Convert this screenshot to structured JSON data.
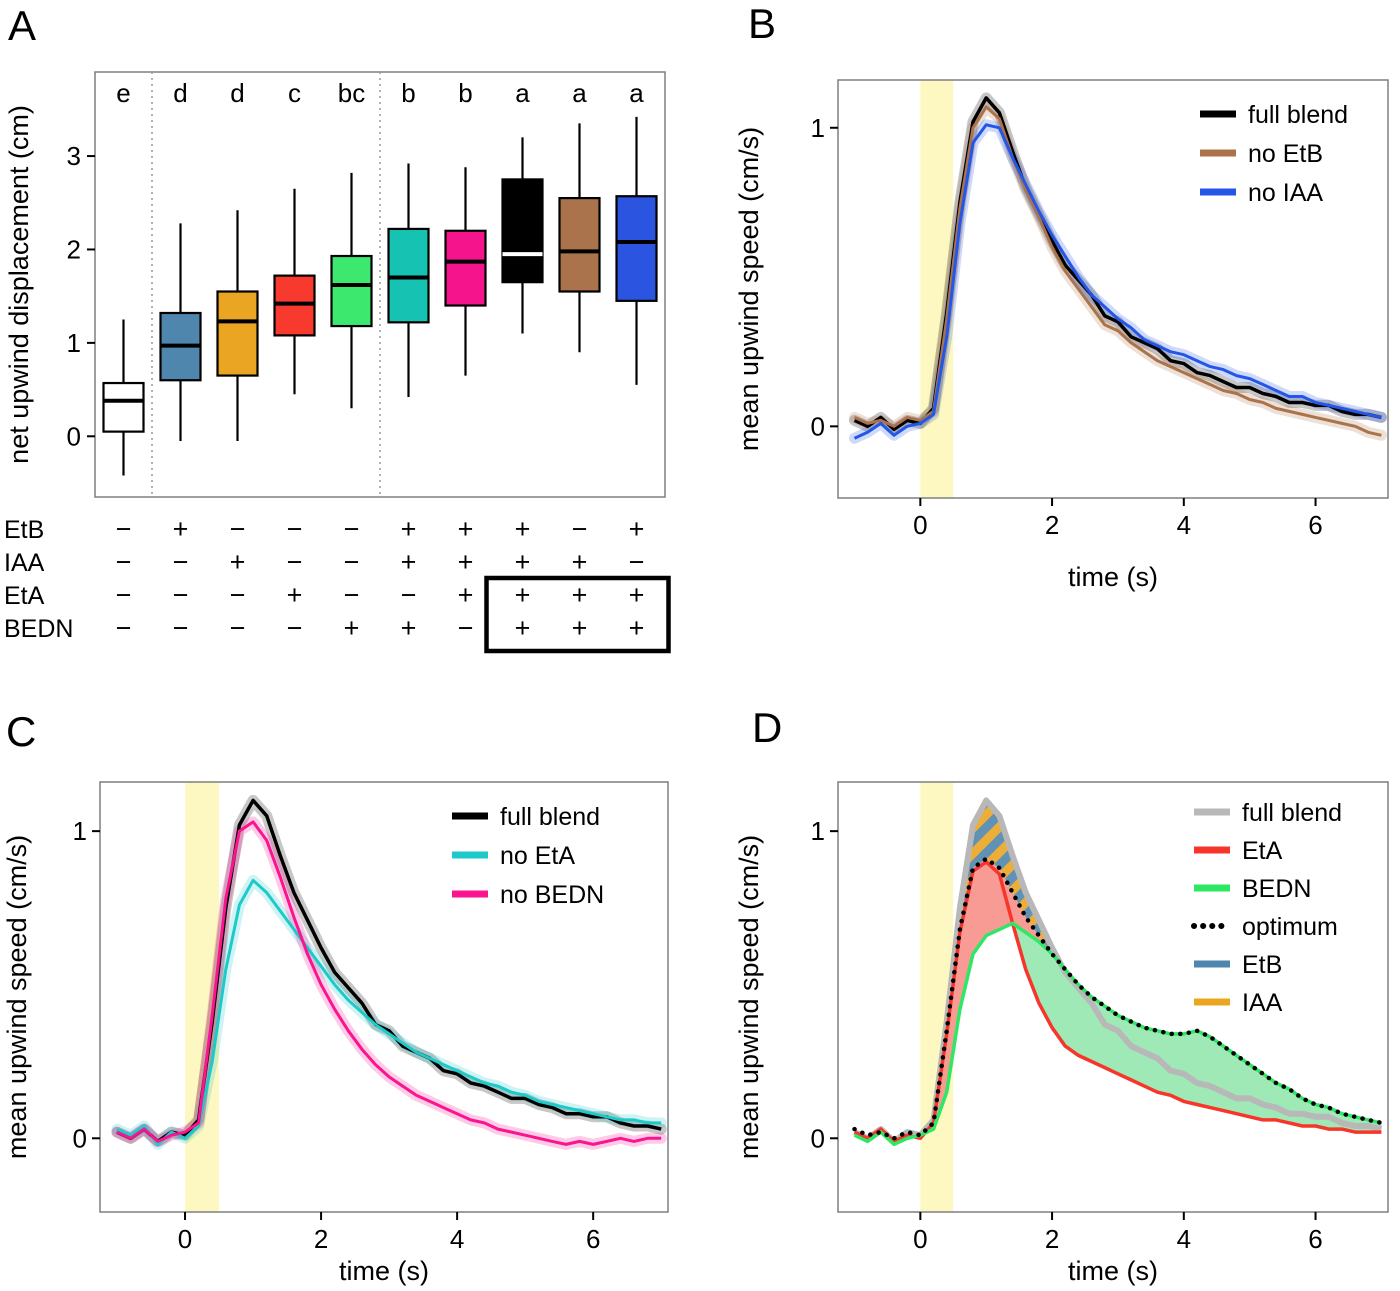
{
  "figure": {
    "panel_labels": {
      "A": "A",
      "B": "B",
      "C": "C",
      "D": "D"
    }
  },
  "colors": {
    "stim_band": "#fdf8c2",
    "panel_border": "#7f7f7f",
    "hatch_blue": "#4f86ae",
    "hatch_orange": "#eaa522",
    "red_fill": "#f79089",
    "green_fill": "#93e7ae"
  },
  "chart_data": [
    {
      "id": "A",
      "type": "boxplot",
      "ylabel": "net upwind displacement (cm)",
      "yticks": [
        0,
        1,
        2,
        3
      ],
      "ylim": [
        -0.65,
        3.9
      ],
      "group_letters": [
        "e",
        "d",
        "d",
        "c",
        "bc",
        "b",
        "b",
        "a",
        "a",
        "a"
      ],
      "separator_after_box": [
        1,
        5
      ],
      "boxes": [
        {
          "fill": "#ffffff",
          "median_color": "#000000",
          "whisker_lo": -0.42,
          "q1": 0.05,
          "median": 0.38,
          "q3": 0.57,
          "whisker_hi": 1.25
        },
        {
          "fill": "#4f86ae",
          "median_color": "#000000",
          "whisker_lo": -0.05,
          "q1": 0.6,
          "median": 0.97,
          "q3": 1.32,
          "whisker_hi": 2.28
        },
        {
          "fill": "#eaa522",
          "median_color": "#000000",
          "whisker_lo": -0.05,
          "q1": 0.65,
          "median": 1.23,
          "q3": 1.55,
          "whisker_hi": 2.42
        },
        {
          "fill": "#f8392e",
          "median_color": "#000000",
          "whisker_lo": 0.45,
          "q1": 1.08,
          "median": 1.42,
          "q3": 1.72,
          "whisker_hi": 2.65
        },
        {
          "fill": "#3ce96e",
          "median_color": "#000000",
          "whisker_lo": 0.3,
          "q1": 1.18,
          "median": 1.62,
          "q3": 1.93,
          "whisker_hi": 2.82
        },
        {
          "fill": "#16c2b2",
          "median_color": "#000000",
          "whisker_lo": 0.42,
          "q1": 1.22,
          "median": 1.7,
          "q3": 2.22,
          "whisker_hi": 2.92
        },
        {
          "fill": "#f5148c",
          "median_color": "#000000",
          "whisker_lo": 0.65,
          "q1": 1.4,
          "median": 1.87,
          "q3": 2.2,
          "whisker_hi": 2.88
        },
        {
          "fill": "#000000",
          "median_color": "#ffffff",
          "whisker_lo": 1.1,
          "q1": 1.65,
          "median": 1.95,
          "q3": 2.75,
          "whisker_hi": 3.2
        },
        {
          "fill": "#aa734b",
          "median_color": "#000000",
          "whisker_lo": 0.9,
          "q1": 1.55,
          "median": 1.98,
          "q3": 2.55,
          "whisker_hi": 3.35
        },
        {
          "fill": "#2b55e0",
          "median_color": "#000000",
          "whisker_lo": 0.55,
          "q1": 1.45,
          "median": 2.08,
          "q3": 2.57,
          "whisker_hi": 3.42
        }
      ],
      "treatment_matrix": {
        "row_labels": [
          "EtB",
          "IAA",
          "EtA",
          "BEDN"
        ],
        "rows": [
          [
            "-",
            "+",
            "-",
            "-",
            "-",
            "+",
            "+",
            "+",
            "-",
            "+"
          ],
          [
            "-",
            "-",
            "+",
            "-",
            "-",
            "+",
            "+",
            "+",
            "+",
            "-"
          ],
          [
            "-",
            "-",
            "-",
            "+",
            "-",
            "-",
            "+",
            "+",
            "+",
            "+"
          ],
          [
            "-",
            "-",
            "-",
            "-",
            "+",
            "+",
            "-",
            "+",
            "+",
            "+"
          ]
        ],
        "highlight": {
          "row_start": 2,
          "row_end": 3,
          "col_start": 7,
          "col_end": 9
        }
      }
    },
    {
      "id": "B",
      "type": "line",
      "xlabel": "time (s)",
      "ylabel": "mean upwind speed (cm/s)",
      "xticks": [
        0,
        2,
        4,
        6
      ],
      "yticks": [
        0,
        1
      ],
      "xlim": [
        -1.25,
        7.1
      ],
      "ylim": [
        -0.24,
        1.16
      ],
      "stim_band": [
        0,
        0.5
      ],
      "t": [
        -1.0,
        -0.8,
        -0.6,
        -0.4,
        -0.2,
        0.0,
        0.2,
        0.4,
        0.6,
        0.8,
        1.0,
        1.2,
        1.4,
        1.6,
        1.8,
        2.0,
        2.2,
        2.4,
        2.6,
        2.8,
        3.0,
        3.2,
        3.4,
        3.6,
        3.8,
        4.0,
        4.2,
        4.4,
        4.6,
        4.8,
        5.0,
        5.2,
        5.4,
        5.6,
        5.8,
        6.0,
        6.2,
        6.4,
        6.6,
        6.8,
        7.0
      ],
      "series": [
        {
          "name": "full blend",
          "color": "#000000",
          "width": 3.5,
          "ribbon": true,
          "values": [
            0.02,
            0.0,
            0.03,
            -0.01,
            0.02,
            0.01,
            0.06,
            0.38,
            0.75,
            1.02,
            1.1,
            1.05,
            0.92,
            0.8,
            0.71,
            0.62,
            0.54,
            0.49,
            0.44,
            0.37,
            0.35,
            0.3,
            0.28,
            0.26,
            0.22,
            0.21,
            0.18,
            0.17,
            0.15,
            0.13,
            0.13,
            0.11,
            0.1,
            0.08,
            0.08,
            0.07,
            0.07,
            0.05,
            0.04,
            0.04,
            0.03
          ]
        },
        {
          "name": "no EtB",
          "color": "#aa734b",
          "width": 3,
          "ribbon": true,
          "values": [
            0.03,
            0.01,
            0.02,
            0.0,
            0.03,
            0.02,
            0.05,
            0.36,
            0.73,
            1.0,
            1.07,
            1.03,
            0.9,
            0.79,
            0.7,
            0.6,
            0.52,
            0.46,
            0.4,
            0.34,
            0.32,
            0.28,
            0.25,
            0.22,
            0.2,
            0.18,
            0.16,
            0.14,
            0.12,
            0.11,
            0.09,
            0.08,
            0.06,
            0.05,
            0.04,
            0.03,
            0.02,
            0.01,
            0.0,
            -0.02,
            -0.03
          ]
        },
        {
          "name": "no IAA",
          "color": "#2456e8",
          "width": 3,
          "ribbon": true,
          "values": [
            -0.04,
            -0.02,
            0.01,
            -0.03,
            0.0,
            0.01,
            0.04,
            0.3,
            0.68,
            0.95,
            1.01,
            1.0,
            0.9,
            0.81,
            0.72,
            0.64,
            0.57,
            0.5,
            0.44,
            0.4,
            0.36,
            0.33,
            0.29,
            0.27,
            0.25,
            0.24,
            0.22,
            0.2,
            0.19,
            0.17,
            0.16,
            0.14,
            0.12,
            0.1,
            0.1,
            0.08,
            0.07,
            0.06,
            0.05,
            0.04,
            0.03
          ]
        }
      ],
      "legend": [
        {
          "label": "full blend",
          "color": "#000000"
        },
        {
          "label": "no EtB",
          "color": "#aa734b"
        },
        {
          "label": "no IAA",
          "color": "#2456e8"
        }
      ]
    },
    {
      "id": "C",
      "type": "line",
      "xlabel": "time (s)",
      "ylabel": "mean upwind speed (cm/s)",
      "xticks": [
        0,
        2,
        4,
        6
      ],
      "yticks": [
        0,
        1
      ],
      "xlim": [
        -1.25,
        7.1
      ],
      "ylim": [
        -0.24,
        1.16
      ],
      "stim_band": [
        0,
        0.5
      ],
      "t": [
        -1.0,
        -0.8,
        -0.6,
        -0.4,
        -0.2,
        0.0,
        0.2,
        0.4,
        0.6,
        0.8,
        1.0,
        1.2,
        1.4,
        1.6,
        1.8,
        2.0,
        2.2,
        2.4,
        2.6,
        2.8,
        3.0,
        3.2,
        3.4,
        3.6,
        3.8,
        4.0,
        4.2,
        4.4,
        4.6,
        4.8,
        5.0,
        5.2,
        5.4,
        5.6,
        5.8,
        6.0,
        6.2,
        6.4,
        6.6,
        6.8,
        7.0
      ],
      "series": [
        {
          "name": "full blend",
          "color": "#000000",
          "width": 3.5,
          "ribbon": true,
          "values": [
            0.02,
            0.0,
            0.03,
            -0.01,
            0.02,
            0.01,
            0.06,
            0.38,
            0.75,
            1.02,
            1.1,
            1.05,
            0.92,
            0.8,
            0.71,
            0.62,
            0.54,
            0.49,
            0.44,
            0.37,
            0.35,
            0.3,
            0.28,
            0.26,
            0.22,
            0.21,
            0.18,
            0.17,
            0.15,
            0.13,
            0.13,
            0.11,
            0.1,
            0.08,
            0.08,
            0.07,
            0.07,
            0.05,
            0.04,
            0.04,
            0.03
          ]
        },
        {
          "name": "no EtA",
          "color": "#1ec9c9",
          "width": 3,
          "ribbon": true,
          "values": [
            0.03,
            0.01,
            0.04,
            -0.02,
            0.02,
            0.0,
            0.04,
            0.25,
            0.55,
            0.76,
            0.84,
            0.8,
            0.74,
            0.68,
            0.62,
            0.56,
            0.5,
            0.45,
            0.41,
            0.37,
            0.34,
            0.31,
            0.28,
            0.26,
            0.24,
            0.22,
            0.2,
            0.18,
            0.17,
            0.15,
            0.14,
            0.12,
            0.11,
            0.1,
            0.09,
            0.08,
            0.07,
            0.06,
            0.06,
            0.05,
            0.05
          ]
        },
        {
          "name": "no BEDN",
          "color": "#fa1490",
          "width": 3,
          "ribbon": true,
          "values": [
            0.02,
            0.0,
            0.03,
            -0.01,
            0.01,
            0.02,
            0.05,
            0.4,
            0.78,
            1.0,
            1.03,
            0.97,
            0.85,
            0.72,
            0.6,
            0.5,
            0.42,
            0.35,
            0.29,
            0.24,
            0.2,
            0.17,
            0.14,
            0.12,
            0.1,
            0.08,
            0.06,
            0.05,
            0.03,
            0.02,
            0.01,
            0.0,
            -0.01,
            -0.02,
            -0.01,
            -0.02,
            -0.01,
            0.0,
            -0.01,
            0.0,
            0.0
          ]
        }
      ],
      "legend": [
        {
          "label": "full blend",
          "color": "#000000"
        },
        {
          "label": "no EtA",
          "color": "#1ec9c9"
        },
        {
          "label": "no BEDN",
          "color": "#fa1490"
        }
      ]
    },
    {
      "id": "D",
      "type": "line",
      "xlabel": "time (s)",
      "ylabel": "mean upwind speed (cm/s)",
      "xticks": [
        0,
        2,
        4,
        6
      ],
      "yticks": [
        0,
        1
      ],
      "xlim": [
        -1.25,
        7.1
      ],
      "ylim": [
        -0.24,
        1.16
      ],
      "stim_band": [
        0,
        0.5
      ],
      "t": [
        -1.0,
        -0.8,
        -0.6,
        -0.4,
        -0.2,
        0.0,
        0.2,
        0.4,
        0.6,
        0.8,
        1.0,
        1.2,
        1.4,
        1.6,
        1.8,
        2.0,
        2.2,
        2.4,
        2.6,
        2.8,
        3.0,
        3.2,
        3.4,
        3.6,
        3.8,
        4.0,
        4.2,
        4.4,
        4.6,
        4.8,
        5.0,
        5.2,
        5.4,
        5.6,
        5.8,
        6.0,
        6.2,
        6.4,
        6.6,
        6.8,
        7.0
      ],
      "series": [
        {
          "name": "full blend",
          "color": "#b8b8b8",
          "width": 6,
          "values": [
            0.02,
            0.0,
            0.03,
            -0.01,
            0.02,
            0.01,
            0.06,
            0.38,
            0.75,
            1.02,
            1.1,
            1.05,
            0.92,
            0.8,
            0.71,
            0.62,
            0.54,
            0.49,
            0.44,
            0.37,
            0.35,
            0.3,
            0.28,
            0.26,
            0.22,
            0.21,
            0.18,
            0.17,
            0.15,
            0.13,
            0.13,
            0.11,
            0.1,
            0.08,
            0.08,
            0.07,
            0.07,
            0.05,
            0.04,
            0.04,
            0.03
          ]
        },
        {
          "name": "EtA",
          "color": "#f8352a",
          "width": 3.5,
          "values": [
            0.02,
            0.0,
            0.03,
            -0.01,
            0.01,
            0.0,
            0.05,
            0.34,
            0.67,
            0.87,
            0.9,
            0.86,
            0.7,
            0.55,
            0.44,
            0.36,
            0.3,
            0.27,
            0.25,
            0.23,
            0.21,
            0.19,
            0.17,
            0.15,
            0.14,
            0.12,
            0.11,
            0.1,
            0.09,
            0.08,
            0.07,
            0.06,
            0.06,
            0.05,
            0.04,
            0.04,
            0.03,
            0.03,
            0.02,
            0.02,
            0.02
          ]
        },
        {
          "name": "BEDN",
          "color": "#2ee865",
          "width": 3.5,
          "values": [
            0.01,
            -0.01,
            0.02,
            -0.02,
            0.0,
            0.01,
            0.03,
            0.15,
            0.42,
            0.6,
            0.66,
            0.68,
            0.7,
            0.67,
            0.64,
            0.6,
            0.55,
            0.5,
            0.46,
            0.43,
            0.4,
            0.38,
            0.36,
            0.35,
            0.34,
            0.34,
            0.35,
            0.33,
            0.3,
            0.27,
            0.24,
            0.21,
            0.18,
            0.16,
            0.13,
            0.11,
            0.1,
            0.08,
            0.07,
            0.06,
            0.05
          ]
        },
        {
          "name": "optimum",
          "color": "#000000",
          "width": 4.5,
          "dash": "0.1 8.5",
          "values": [
            0.03,
            0.01,
            0.02,
            0.0,
            0.02,
            0.01,
            0.05,
            0.35,
            0.68,
            0.88,
            0.91,
            0.88,
            0.8,
            0.72,
            0.66,
            0.6,
            0.55,
            0.5,
            0.46,
            0.43,
            0.4,
            0.38,
            0.36,
            0.35,
            0.34,
            0.34,
            0.35,
            0.33,
            0.3,
            0.27,
            0.24,
            0.21,
            0.18,
            0.16,
            0.13,
            0.11,
            0.1,
            0.08,
            0.07,
            0.06,
            0.05
          ]
        }
      ],
      "fills": [
        {
          "top": "optimum",
          "bottom": "BEDN",
          "t_start": 0.2,
          "t_end": 2.0,
          "fill": "#f79089"
        },
        {
          "top": "BEDN",
          "bottom": "EtA",
          "t_start": 1.4,
          "t_end": 7.0,
          "fill": "#93e7ae"
        },
        {
          "top": "full blend",
          "bottom": "optimum",
          "t_start": 0.4,
          "t_end": 2.2,
          "fill": "hatch"
        }
      ],
      "legend": [
        {
          "label": "full blend",
          "color": "#b8b8b8"
        },
        {
          "label": "EtA",
          "color": "#f8352a"
        },
        {
          "label": "BEDN",
          "color": "#2ee865"
        },
        {
          "label": "optimum",
          "color": "#000000",
          "style": "dotted"
        },
        {
          "label": "EtB",
          "color": "#4f86ae"
        },
        {
          "label": "IAA",
          "color": "#eaa522"
        }
      ]
    }
  ]
}
